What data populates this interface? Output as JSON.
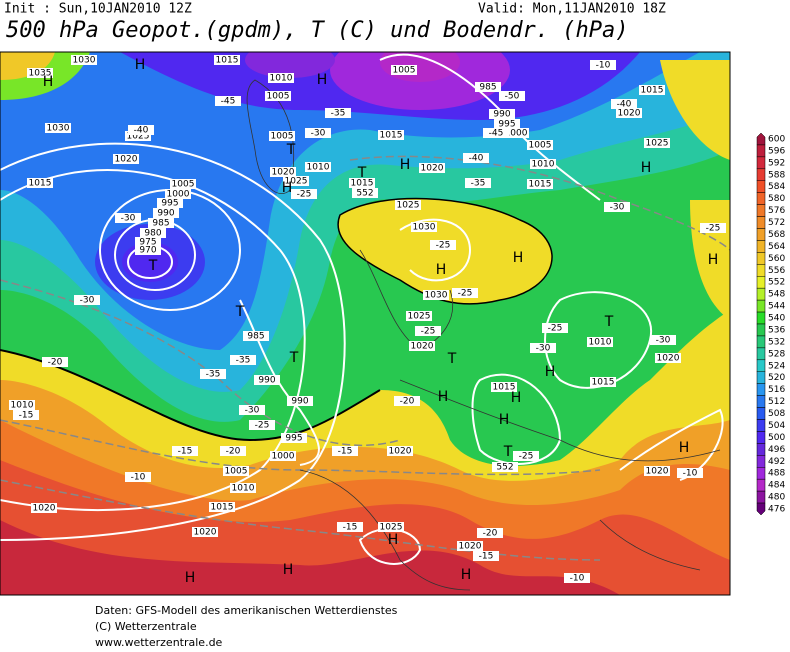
{
  "header": {
    "init": "Init : Sun,10JAN2010 12Z",
    "valid": "Valid: Mon,11JAN2010 18Z",
    "title": "500 hPa Geopot.(gpdm), T (C) und Bodendr. (hPa)"
  },
  "map": {
    "labels": [
      "1035",
      "1030",
      "1015",
      "1010",
      "1005",
      "1005",
      "985",
      "990",
      "995",
      "1000",
      "1005",
      "1010",
      "1015",
      "1015",
      "1020",
      "1025",
      "1030",
      "1025",
      "1020",
      "1015",
      "1005",
      "1000",
      "995",
      "990",
      "985",
      "980",
      "975",
      "970",
      "1005",
      "1010",
      "1020",
      "1025",
      "1015",
      "1015",
      "1020",
      "1025",
      "1030",
      "1030",
      "1025",
      "1020",
      "985",
      "990",
      "990",
      "995",
      "1000",
      "1005",
      "1010",
      "1015",
      "1020",
      "1010",
      "1020",
      "1020",
      "1025",
      "1020",
      "1015",
      "1015",
      "1010",
      "1020",
      "1020",
      "-10",
      "-40",
      "-45",
      "-40",
      "-35",
      "-30",
      "-25",
      "-30",
      "-30",
      "-20",
      "-15",
      "-10",
      "-15",
      "-20",
      "-35",
      "-35",
      "-30",
      "-25",
      "-20",
      "-15",
      "-15",
      "-20",
      "-15",
      "-10",
      "-25",
      "-25",
      "-25",
      "-30",
      "-25",
      "-30",
      "-30",
      "-25",
      "-10",
      "-25",
      "-35",
      "-40",
      "-45",
      "-50",
      "552",
      "552"
    ],
    "letters": [
      "H",
      "H",
      "H",
      "H",
      "H",
      "T",
      "T",
      "H",
      "T",
      "T",
      "T",
      "H",
      "H",
      "T",
      "T",
      "H",
      "H",
      "H",
      "T",
      "H",
      "H",
      "H",
      "H",
      "H",
      "H",
      "H"
    ]
  },
  "colorbar": {
    "levels": [
      600,
      596,
      592,
      588,
      584,
      580,
      576,
      572,
      568,
      564,
      560,
      556,
      552,
      548,
      544,
      540,
      536,
      532,
      528,
      524,
      520,
      516,
      512,
      508,
      504,
      500,
      496,
      492,
      488,
      484,
      480,
      476
    ],
    "colors": [
      "#a0143c",
      "#be1e3c",
      "#d2283c",
      "#e63c32",
      "#f05028",
      "#f06428",
      "#f07828",
      "#f08c28",
      "#f0a028",
      "#f0b428",
      "#f0c828",
      "#f0dc28",
      "#e6f028",
      "#b4f028",
      "#78e628",
      "#28dc28",
      "#28c850",
      "#28c878",
      "#28c8a0",
      "#28c8c8",
      "#28b4dc",
      "#2896f0",
      "#2878f0",
      "#285af0",
      "#3c3cf0",
      "#5028f0",
      "#6428dc",
      "#8228dc",
      "#a028dc",
      "#b428c8",
      "#8c14a0",
      "#640078"
    ]
  },
  "footer": [
    "Daten: GFS-Modell des amerikanischen Wetterdienstes",
    "(C) Wetterzentrale",
    "www.wetterzentrale.de"
  ]
}
